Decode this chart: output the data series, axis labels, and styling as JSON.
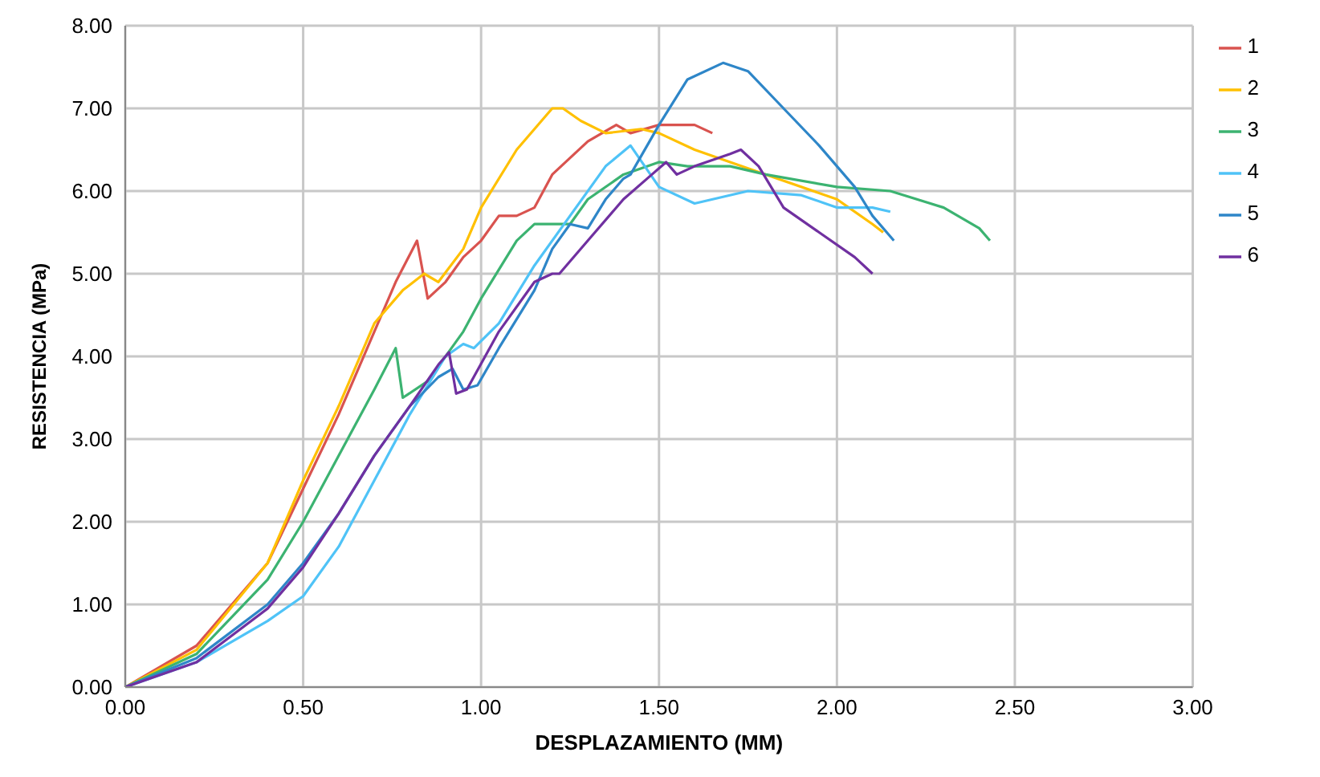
{
  "chart_data": {
    "type": "line",
    "xlabel": "DESPLAZAMIENTO (MM)",
    "ylabel": "RESISTENCIA (MPa)",
    "xlim": [
      0,
      3
    ],
    "ylim": [
      0,
      8
    ],
    "xticks": [
      {
        "value": 0,
        "label": "0.00"
      },
      {
        "value": 0.5,
        "label": "0.50"
      },
      {
        "value": 1,
        "label": "1.00"
      },
      {
        "value": 1.5,
        "label": "1.50"
      },
      {
        "value": 2,
        "label": "2.00"
      },
      {
        "value": 2.5,
        "label": "2.50"
      },
      {
        "value": 3,
        "label": "3.00"
      }
    ],
    "yticks": [
      {
        "value": 0,
        "label": "0.00"
      },
      {
        "value": 1,
        "label": "1.00"
      },
      {
        "value": 2,
        "label": "2.00"
      },
      {
        "value": 3,
        "label": "3.00"
      },
      {
        "value": 4,
        "label": "4.00"
      },
      {
        "value": 5,
        "label": "5.00"
      },
      {
        "value": 6,
        "label": "6.00"
      },
      {
        "value": 7,
        "label": "7.00"
      },
      {
        "value": 8,
        "label": "8.00"
      }
    ],
    "grid": true,
    "legend": "top right",
    "marker": "none",
    "line_style": "solid",
    "series": [
      {
        "name": "1",
        "color": "#d9534f",
        "x": [
          0,
          0.2,
          0.4,
          0.5,
          0.6,
          0.7,
          0.76,
          0.82,
          0.85,
          0.9,
          0.95,
          1.0,
          1.05,
          1.1,
          1.15,
          1.2,
          1.3,
          1.38,
          1.42,
          1.5,
          1.6,
          1.65
        ],
        "values": [
          0,
          0.5,
          1.5,
          2.4,
          3.3,
          4.3,
          4.9,
          5.4,
          4.7,
          4.9,
          5.2,
          5.4,
          5.7,
          5.7,
          5.8,
          6.2,
          6.6,
          6.8,
          6.7,
          6.8,
          6.8,
          6.7
        ]
      },
      {
        "name": "2",
        "color": "#ffc000",
        "x": [
          0,
          0.2,
          0.4,
          0.5,
          0.6,
          0.7,
          0.78,
          0.84,
          0.88,
          0.95,
          1.0,
          1.1,
          1.2,
          1.23,
          1.28,
          1.35,
          1.45,
          1.5,
          1.6,
          1.7,
          1.8,
          2.0,
          2.1,
          2.13
        ],
        "values": [
          0,
          0.45,
          1.5,
          2.5,
          3.4,
          4.4,
          4.8,
          5.0,
          4.9,
          5.3,
          5.8,
          6.5,
          7.0,
          7.0,
          6.85,
          6.7,
          6.75,
          6.7,
          6.5,
          6.35,
          6.2,
          5.9,
          5.6,
          5.5
        ]
      },
      {
        "name": "3",
        "color": "#3cb371",
        "x": [
          0,
          0.2,
          0.4,
          0.5,
          0.6,
          0.7,
          0.76,
          0.78,
          0.85,
          0.95,
          1.0,
          1.1,
          1.15,
          1.25,
          1.3,
          1.4,
          1.5,
          1.58,
          1.7,
          1.8,
          2.0,
          2.15,
          2.3,
          2.4,
          2.43
        ],
        "values": [
          0,
          0.4,
          1.3,
          2.0,
          2.8,
          3.6,
          4.1,
          3.5,
          3.7,
          4.3,
          4.7,
          5.4,
          5.6,
          5.6,
          5.9,
          6.2,
          6.35,
          6.3,
          6.3,
          6.2,
          6.05,
          6.0,
          5.8,
          5.55,
          5.4
        ]
      },
      {
        "name": "4",
        "color": "#4fc3f7",
        "x": [
          0,
          0.2,
          0.4,
          0.5,
          0.6,
          0.7,
          0.8,
          0.9,
          0.95,
          0.98,
          1.05,
          1.15,
          1.25,
          1.35,
          1.42,
          1.46,
          1.5,
          1.6,
          1.75,
          1.9,
          2.0,
          2.1,
          2.15
        ],
        "values": [
          0,
          0.3,
          0.8,
          1.1,
          1.7,
          2.5,
          3.3,
          4.0,
          4.15,
          4.1,
          4.4,
          5.1,
          5.7,
          6.3,
          6.55,
          6.3,
          6.05,
          5.85,
          6.0,
          5.95,
          5.8,
          5.8,
          5.75
        ]
      },
      {
        "name": "5",
        "color": "#2e86c8",
        "x": [
          0,
          0.2,
          0.4,
          0.5,
          0.6,
          0.7,
          0.8,
          0.88,
          0.92,
          0.95,
          0.99,
          1.05,
          1.15,
          1.2,
          1.25,
          1.3,
          1.35,
          1.4,
          1.42,
          1.5,
          1.58,
          1.68,
          1.75,
          1.85,
          1.95,
          2.05,
          2.1,
          2.16
        ],
        "values": [
          0,
          0.35,
          1.0,
          1.5,
          2.1,
          2.8,
          3.4,
          3.75,
          3.85,
          3.6,
          3.65,
          4.1,
          4.8,
          5.3,
          5.6,
          5.55,
          5.9,
          6.15,
          6.2,
          6.8,
          7.35,
          7.55,
          7.45,
          7.0,
          6.55,
          6.05,
          5.7,
          5.4
        ]
      },
      {
        "name": "6",
        "color": "#7030a0",
        "x": [
          0,
          0.2,
          0.4,
          0.5,
          0.6,
          0.7,
          0.8,
          0.88,
          0.91,
          0.93,
          0.96,
          1.05,
          1.15,
          1.2,
          1.22,
          1.3,
          1.4,
          1.48,
          1.52,
          1.55,
          1.6,
          1.7,
          1.73,
          1.78,
          1.85,
          1.95,
          2.05,
          2.1
        ],
        "values": [
          0,
          0.3,
          0.95,
          1.45,
          2.1,
          2.8,
          3.4,
          3.9,
          4.05,
          3.55,
          3.6,
          4.3,
          4.9,
          5.0,
          5.0,
          5.4,
          5.9,
          6.2,
          6.35,
          6.2,
          6.3,
          6.45,
          6.5,
          6.3,
          5.8,
          5.5,
          5.2,
          5.0
        ]
      }
    ]
  }
}
